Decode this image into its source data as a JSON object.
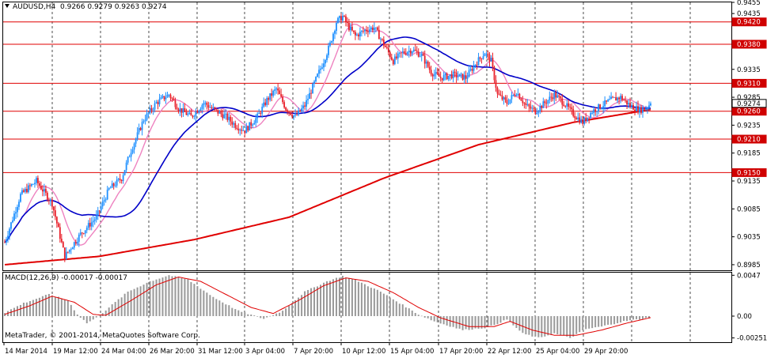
{
  "header": {
    "symbol_timeframe": "AUDUSD,H4",
    "ohlc": "0.9266 0.9279 0.9263 0.9274"
  },
  "macd": {
    "label": "MACD(12,26,9) -0.00017 -0.00017"
  },
  "copyright": "MetaTrader, © 2001-2014, MetaQuotes Software Corp.",
  "colors": {
    "background": "#ffffff",
    "grid": "#000000",
    "bull": "#1e90ff",
    "bear": "#e8202a",
    "ma_fast": "#ee82c0",
    "ma_mid": "#0000c8",
    "ma_slow": "#e00000",
    "hline": "#e00000",
    "macd_hist": "#999999",
    "macd_signal": "#e00000",
    "price_box": "#d00000"
  },
  "chart_data": {
    "type": "candlestick",
    "ylim": [
      0.8975,
      0.9455
    ],
    "price_ticks": [
      {
        "value": 0.9455,
        "label": "0.9455"
      },
      {
        "value": 0.9435,
        "label": "0.9435"
      },
      {
        "value": 0.9335,
        "label": "0.9335"
      },
      {
        "value": 0.9285,
        "label": "0.9285"
      },
      {
        "value": 0.9235,
        "label": "0.9235"
      },
      {
        "value": 0.9185,
        "label": "0.9185"
      },
      {
        "value": 0.9135,
        "label": "0.9135"
      },
      {
        "value": 0.9085,
        "label": "0.9085"
      },
      {
        "value": 0.9035,
        "label": "0.9035"
      },
      {
        "value": 0.8985,
        "label": "0.8985"
      }
    ],
    "horizontal_levels": [
      {
        "value": 0.942,
        "label": "0.9420"
      },
      {
        "value": 0.938,
        "label": "0.9380"
      },
      {
        "value": 0.931,
        "label": "0.9310"
      },
      {
        "value": 0.926,
        "label": "0.9260"
      },
      {
        "value": 0.921,
        "label": "0.9210"
      },
      {
        "value": 0.915,
        "label": "0.9150"
      }
    ],
    "current_price": {
      "value": 0.9274,
      "label": "0.9274"
    },
    "x_labels": [
      "14 Mar 2014",
      "19 Mar 12:00",
      "24 Mar 04:00",
      "26 Mar 20:00",
      "31 Mar 12:00",
      "3 Apr 04:00",
      "7 Apr 20:00",
      "10 Apr 12:00",
      "15 Apr 04:00",
      "17 Apr 20:00",
      "22 Apr 12:00",
      "25 Apr 04:00",
      "29 Apr 20:00"
    ],
    "anchors": [
      [
        0,
        0.9025
      ],
      [
        10,
        0.911
      ],
      [
        20,
        0.9135
      ],
      [
        30,
        0.9095
      ],
      [
        38,
        0.9
      ],
      [
        48,
        0.904
      ],
      [
        58,
        0.907
      ],
      [
        66,
        0.912
      ],
      [
        74,
        0.914
      ],
      [
        80,
        0.919
      ],
      [
        88,
        0.9245
      ],
      [
        96,
        0.9275
      ],
      [
        104,
        0.929
      ],
      [
        110,
        0.9265
      ],
      [
        118,
        0.925
      ],
      [
        126,
        0.9275
      ],
      [
        134,
        0.926
      ],
      [
        140,
        0.925
      ],
      [
        146,
        0.9235
      ],
      [
        152,
        0.9225
      ],
      [
        160,
        0.925
      ],
      [
        166,
        0.928
      ],
      [
        172,
        0.93
      ],
      [
        178,
        0.9265
      ],
      [
        184,
        0.925
      ],
      [
        190,
        0.927
      ],
      [
        196,
        0.931
      ],
      [
        202,
        0.935
      ],
      [
        206,
        0.938
      ],
      [
        210,
        0.942
      ],
      [
        214,
        0.943
      ],
      [
        218,
        0.941
      ],
      [
        222,
        0.9395
      ],
      [
        228,
        0.9405
      ],
      [
        234,
        0.941
      ],
      [
        240,
        0.938
      ],
      [
        246,
        0.935
      ],
      [
        252,
        0.9365
      ],
      [
        258,
        0.937
      ],
      [
        264,
        0.936
      ],
      [
        270,
        0.933
      ],
      [
        276,
        0.932
      ],
      [
        284,
        0.9325
      ],
      [
        292,
        0.932
      ],
      [
        298,
        0.9345
      ],
      [
        304,
        0.9365
      ],
      [
        308,
        0.935
      ],
      [
        312,
        0.929
      ],
      [
        318,
        0.9275
      ],
      [
        324,
        0.9295
      ],
      [
        330,
        0.927
      ],
      [
        336,
        0.926
      ],
      [
        342,
        0.9275
      ],
      [
        348,
        0.929
      ],
      [
        354,
        0.9275
      ],
      [
        360,
        0.9255
      ],
      [
        366,
        0.924
      ],
      [
        372,
        0.926
      ],
      [
        378,
        0.927
      ],
      [
        384,
        0.928
      ],
      [
        390,
        0.9285
      ],
      [
        396,
        0.927
      ],
      [
        402,
        0.9262
      ],
      [
        406,
        0.9266
      ],
      [
        409,
        0.9274
      ]
    ],
    "macd_ylim": [
      -0.003,
      0.005
    ],
    "macd_ticks": [
      {
        "value": 0.0047,
        "label": "0.0047"
      },
      {
        "value": 0.0,
        "label": "0.00"
      },
      {
        "value": -0.00251,
        "label": "-0.00251"
      }
    ],
    "macd_hist_anchors": [
      [
        0,
        0.0004
      ],
      [
        12,
        0.0015
      ],
      [
        28,
        0.0025
      ],
      [
        40,
        0.0018
      ],
      [
        46,
        0.0002
      ],
      [
        52,
        -0.0008
      ],
      [
        58,
        -0.0002
      ],
      [
        66,
        0.001
      ],
      [
        78,
        0.0028
      ],
      [
        92,
        0.004
      ],
      [
        104,
        0.0047
      ],
      [
        116,
        0.0042
      ],
      [
        132,
        0.0022
      ],
      [
        148,
        0.0006
      ],
      [
        164,
        -0.0003
      ],
      [
        176,
        0.0006
      ],
      [
        190,
        0.0028
      ],
      [
        204,
        0.004
      ],
      [
        214,
        0.0046
      ],
      [
        224,
        0.004
      ],
      [
        238,
        0.0028
      ],
      [
        250,
        0.0015
      ],
      [
        262,
        0.0002
      ],
      [
        272,
        -0.0006
      ],
      [
        290,
        -0.0016
      ],
      [
        306,
        -0.0013
      ],
      [
        318,
        -0.0004
      ],
      [
        328,
        -0.002
      ],
      [
        338,
        -0.0025
      ],
      [
        348,
        -0.002
      ],
      [
        358,
        -0.0025
      ],
      [
        368,
        -0.0015
      ],
      [
        378,
        -0.0012
      ],
      [
        392,
        -0.0006
      ],
      [
        409,
        -0.00017
      ]
    ],
    "macd_signal_anchors": [
      [
        0,
        0.0002
      ],
      [
        16,
        0.0012
      ],
      [
        30,
        0.0023
      ],
      [
        44,
        0.0016
      ],
      [
        56,
        0.0002
      ],
      [
        64,
        0.0001
      ],
      [
        80,
        0.0018
      ],
      [
        96,
        0.0036
      ],
      [
        110,
        0.0045
      ],
      [
        124,
        0.004
      ],
      [
        140,
        0.0025
      ],
      [
        156,
        0.001
      ],
      [
        170,
        0.0003
      ],
      [
        186,
        0.0018
      ],
      [
        202,
        0.0035
      ],
      [
        216,
        0.0044
      ],
      [
        230,
        0.004
      ],
      [
        246,
        0.0027
      ],
      [
        262,
        0.001
      ],
      [
        276,
        -0.0002
      ],
      [
        294,
        -0.0012
      ],
      [
        310,
        -0.0012
      ],
      [
        320,
        -0.0006
      ],
      [
        334,
        -0.0016
      ],
      [
        348,
        -0.0022
      ],
      [
        362,
        -0.0022
      ],
      [
        378,
        -0.0016
      ],
      [
        394,
        -0.0008
      ],
      [
        409,
        -0.00017
      ]
    ]
  }
}
